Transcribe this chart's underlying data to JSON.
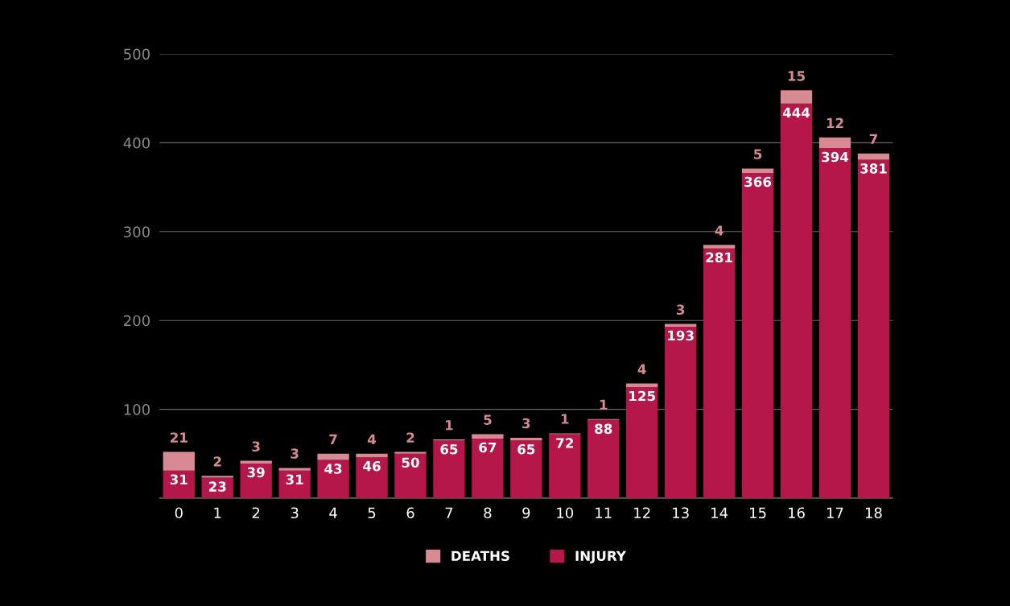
{
  "chart_data": {
    "type": "bar",
    "stacked": true,
    "data_labels": true,
    "grid": "y",
    "legend": "bottom",
    "categories": [
      "0",
      "1",
      "2",
      "3",
      "4",
      "5",
      "6",
      "7",
      "8",
      "9",
      "10",
      "11",
      "12",
      "13",
      "14",
      "15",
      "16",
      "17",
      "18"
    ],
    "series": [
      {
        "name": "INJURY",
        "color": "#b5174a",
        "values": [
          31,
          23,
          39,
          31,
          43,
          46,
          50,
          65,
          67,
          65,
          72,
          88,
          125,
          193,
          281,
          366,
          444,
          394,
          381
        ]
      },
      {
        "name": "DEATHS",
        "color": "#d88a92",
        "values": [
          21,
          2,
          3,
          3,
          7,
          4,
          2,
          1,
          5,
          3,
          1,
          1,
          4,
          3,
          4,
          5,
          15,
          12,
          7
        ]
      }
    ],
    "ylim": [
      0,
      500
    ],
    "yticks": [
      {
        "value": 0,
        "label": null
      },
      100,
      200,
      300,
      400,
      500
    ]
  }
}
